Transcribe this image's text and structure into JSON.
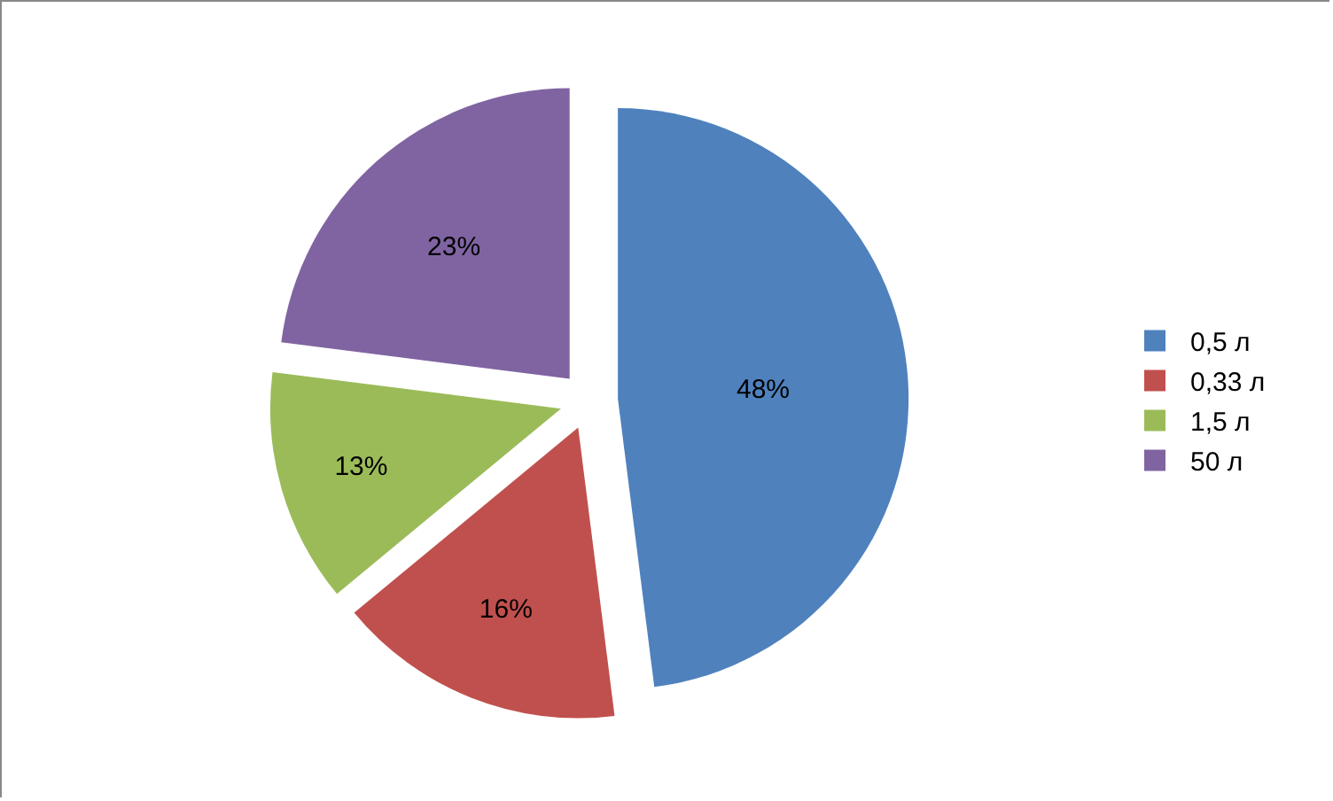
{
  "chart_data": {
    "type": "pie",
    "categories": [
      "0,5 л",
      "0,33 л",
      "1,5 л",
      "50 л"
    ],
    "values": [
      48,
      16,
      13,
      23
    ],
    "colors": [
      "#4f81bd",
      "#c0504d",
      "#9bbb59",
      "#8064a2"
    ],
    "value_labels": [
      "48%",
      "16%",
      "13%",
      "23%"
    ],
    "legend": "right"
  }
}
